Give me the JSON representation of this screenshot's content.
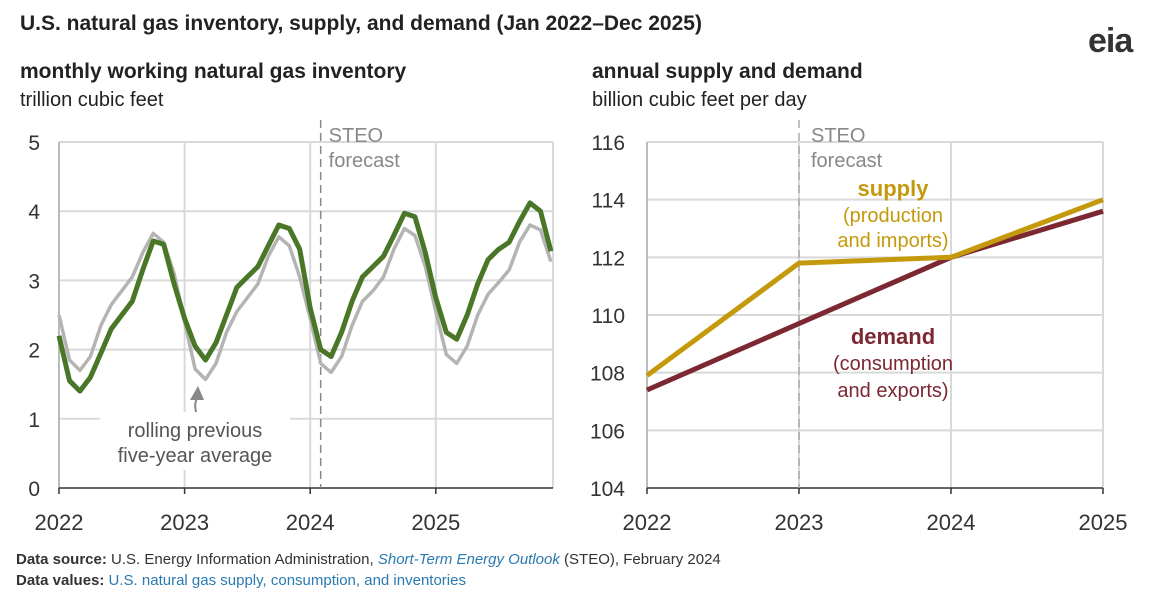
{
  "title": "U.S. natural gas inventory, supply, and demand (Jan 2022–Dec 2025)",
  "logo": "eia",
  "colors": {
    "inventory": "#4a7628",
    "average": "#b4b4b4",
    "supply": "#c49a0c",
    "demand": "#7b2832",
    "link": "#2a7ab0"
  },
  "chart_data": [
    {
      "type": "line",
      "title": "monthly working natural gas inventory",
      "ylabel": "trillion cubic feet",
      "ylim": [
        0,
        5
      ],
      "yticks": [
        "0",
        "1",
        "2",
        "3",
        "4",
        "5"
      ],
      "xticks": [
        "2022",
        "2023",
        "2024",
        "2025"
      ],
      "grid": true,
      "x_start": "2022-01",
      "x_end": "2025-12",
      "forecast_start": "2024-02",
      "forecast_label_1": "STEO",
      "forecast_label_2": "forecast",
      "annotation_1": "rolling previous",
      "annotation_2": "five-year average",
      "series": [
        {
          "key": "inventory",
          "values": [
            2.2,
            1.55,
            1.4,
            1.6,
            1.95,
            2.3,
            2.5,
            2.7,
            3.15,
            3.57,
            3.52,
            2.95,
            2.45,
            2.05,
            1.85,
            2.1,
            2.5,
            2.9,
            3.05,
            3.2,
            3.5,
            3.8,
            3.75,
            3.45,
            2.6,
            2.0,
            1.9,
            2.25,
            2.7,
            3.05,
            3.2,
            3.35,
            3.65,
            3.97,
            3.92,
            3.4,
            2.75,
            2.25,
            2.15,
            2.5,
            2.95,
            3.3,
            3.45,
            3.55,
            3.85,
            4.12,
            4.0,
            3.42
          ]
        },
        {
          "name": "rolling previous five-year average",
          "key": "average",
          "values": [
            2.5,
            1.85,
            1.7,
            1.9,
            2.35,
            2.65,
            2.85,
            3.05,
            3.4,
            3.68,
            3.55,
            3.1,
            2.4,
            1.72,
            1.57,
            1.8,
            2.25,
            2.55,
            2.75,
            2.95,
            3.35,
            3.63,
            3.5,
            3.05,
            2.45,
            1.8,
            1.67,
            1.9,
            2.35,
            2.7,
            2.85,
            3.05,
            3.45,
            3.75,
            3.65,
            3.2,
            2.55,
            1.93,
            1.8,
            2.05,
            2.5,
            2.8,
            2.97,
            3.15,
            3.55,
            3.8,
            3.73,
            3.27
          ]
        }
      ]
    },
    {
      "type": "line",
      "title": "annual supply and demand",
      "ylabel": "billion cubic feet per day",
      "ylim": [
        104,
        116
      ],
      "yticks": [
        "104",
        "106",
        "108",
        "110",
        "112",
        "114",
        "116"
      ],
      "categories": [
        "2022",
        "2023",
        "2024",
        "2025"
      ],
      "grid": true,
      "forecast_start": "2023",
      "forecast_label_1": "STEO",
      "forecast_label_2": "forecast",
      "series": [
        {
          "name": "supply",
          "detail_1": "(production",
          "detail_2": "and imports)",
          "key": "supply",
          "values": [
            107.9,
            111.8,
            112.0,
            114.0
          ]
        },
        {
          "name": "demand",
          "detail_1": "(consumption",
          "detail_2": "and exports)",
          "key": "demand",
          "values": [
            107.4,
            109.7,
            112.0,
            113.6
          ]
        }
      ]
    }
  ],
  "footer": {
    "source_label": "Data source:",
    "source_text": "U.S. Energy Information Administration,",
    "source_link": "Short-Term Energy Outlook",
    "source_tail": "(STEO), February 2024",
    "values_label": "Data values:",
    "values_link": "U.S. natural gas supply, consumption, and inventories"
  }
}
